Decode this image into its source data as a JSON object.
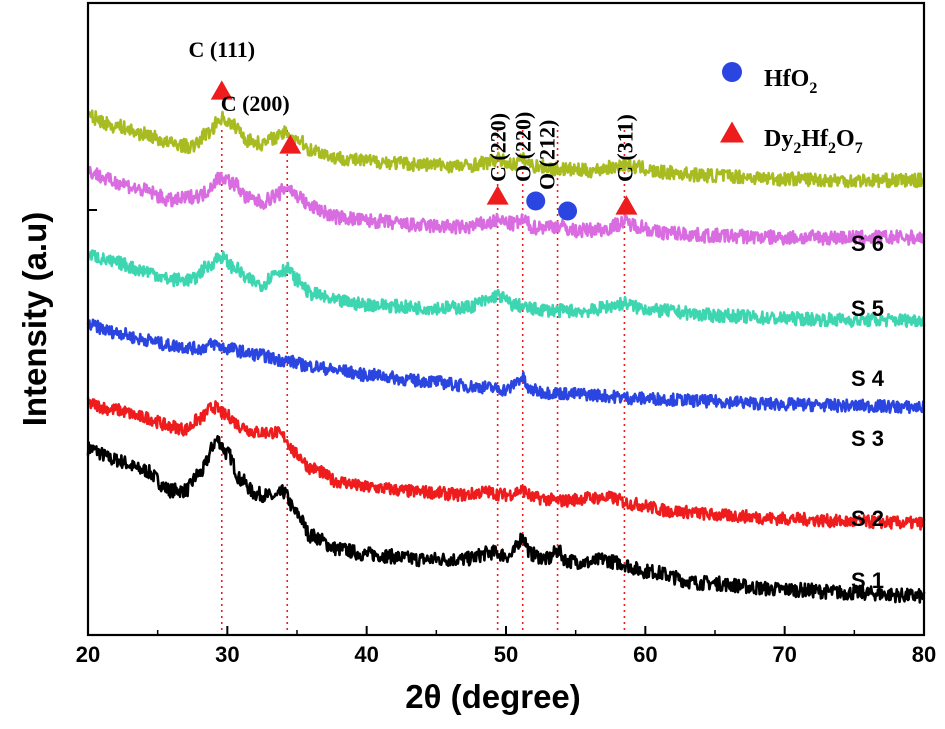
{
  "chart_data": {
    "type": "line",
    "xlabel": "2θ (degree)",
    "ylabel": "Intensity (a.u)",
    "xlim": [
      20,
      80
    ],
    "xticks": [
      20,
      30,
      40,
      50,
      60,
      70,
      80
    ],
    "grid": false,
    "legend_position": "top-right",
    "legend": [
      {
        "marker": "circle",
        "color": "#2b45e0",
        "label": "HfO",
        "sub": "2",
        "label2": "",
        "sub2": "",
        "label3": ""
      },
      {
        "marker": "triangle",
        "color": "#ee1c1c",
        "label": "Dy",
        "sub": "2",
        "label2": "Hf",
        "sub2": "2",
        "label3": "O",
        "sub3": "7"
      }
    ],
    "reference_lines": [
      29.6,
      34.3,
      49.4,
      51.2,
      53.7,
      58.5
    ],
    "peak_annotations": [
      {
        "label": "C  (111)",
        "x": 29.6,
        "marker": "triangle",
        "orientation": "horizontal"
      },
      {
        "label": "C  (200)",
        "x": 34.3,
        "marker": "triangle",
        "orientation": "horizontal"
      },
      {
        "label": "C  (220)",
        "x": 49.4,
        "marker": "triangle",
        "orientation": "vertical"
      },
      {
        "label": "O  (220)",
        "x": 51.2,
        "marker": "circle",
        "orientation": "vertical"
      },
      {
        "label": "O  (212)",
        "x": 53.7,
        "marker": "circle",
        "orientation": "vertical"
      },
      {
        "label": "C (311)",
        "x": 58.5,
        "marker": "triangle",
        "orientation": "vertical"
      }
    ],
    "series": [
      {
        "name": "S 1",
        "color": "#000000",
        "points": [
          [
            20,
            0.95
          ],
          [
            22,
            0.88
          ],
          [
            24,
            0.82
          ],
          [
            26,
            0.7
          ],
          [
            27,
            0.7
          ],
          [
            28,
            0.8
          ],
          [
            29.3,
            1.0
          ],
          [
            30,
            0.92
          ],
          [
            31,
            0.76
          ],
          [
            32,
            0.68
          ],
          [
            33.5,
            0.66
          ],
          [
            34,
            0.69
          ],
          [
            35,
            0.56
          ],
          [
            36,
            0.43
          ],
          [
            38,
            0.35
          ],
          [
            40,
            0.32
          ],
          [
            44,
            0.29
          ],
          [
            47,
            0.29
          ],
          [
            49,
            0.33
          ],
          [
            50.3,
            0.31
          ],
          [
            51.2,
            0.42
          ],
          [
            51.8,
            0.32
          ],
          [
            53,
            0.29
          ],
          [
            53.7,
            0.34
          ],
          [
            54.4,
            0.28
          ],
          [
            56,
            0.27
          ],
          [
            57,
            0.29
          ],
          [
            58,
            0.27
          ],
          [
            60,
            0.22
          ],
          [
            64,
            0.15
          ],
          [
            70,
            0.11
          ],
          [
            75,
            0.09
          ],
          [
            80,
            0.07
          ]
        ]
      },
      {
        "name": "S 2",
        "color": "#ee1c1c",
        "points": [
          [
            20,
            1.0
          ],
          [
            22,
            0.96
          ],
          [
            24,
            0.91
          ],
          [
            26,
            0.85
          ],
          [
            27,
            0.83
          ],
          [
            28,
            0.9
          ],
          [
            29.0,
            0.98
          ],
          [
            30,
            0.92
          ],
          [
            31,
            0.85
          ],
          [
            32,
            0.81
          ],
          [
            33.5,
            0.81
          ],
          [
            34,
            0.78
          ],
          [
            35,
            0.66
          ],
          [
            36,
            0.57
          ],
          [
            38,
            0.48
          ],
          [
            40,
            0.44
          ],
          [
            44,
            0.41
          ],
          [
            47,
            0.39
          ],
          [
            48.5,
            0.41
          ],
          [
            50,
            0.39
          ],
          [
            51.2,
            0.42
          ],
          [
            52,
            0.37
          ],
          [
            54,
            0.35
          ],
          [
            56,
            0.37
          ],
          [
            57.5,
            0.37
          ],
          [
            59,
            0.33
          ],
          [
            62,
            0.28
          ],
          [
            66,
            0.25
          ],
          [
            70,
            0.23
          ],
          [
            75,
            0.21
          ],
          [
            80,
            0.2
          ]
        ]
      },
      {
        "name": "S 3",
        "color": "#2b45e0",
        "points": [
          [
            20,
            1.0
          ],
          [
            22,
            0.95
          ],
          [
            24,
            0.9
          ],
          [
            26,
            0.86
          ],
          [
            28,
            0.84
          ],
          [
            29,
            0.87
          ],
          [
            30,
            0.84
          ],
          [
            32,
            0.8
          ],
          [
            34,
            0.76
          ],
          [
            36,
            0.72
          ],
          [
            38,
            0.69
          ],
          [
            40,
            0.66
          ],
          [
            44,
            0.62
          ],
          [
            48,
            0.58
          ],
          [
            50,
            0.56
          ],
          [
            51.2,
            0.64
          ],
          [
            51.6,
            0.56
          ],
          [
            53,
            0.54
          ],
          [
            55,
            0.53
          ],
          [
            60,
            0.5
          ],
          [
            65,
            0.48
          ],
          [
            70,
            0.46
          ],
          [
            75,
            0.45
          ],
          [
            80,
            0.44
          ]
        ]
      },
      {
        "name": "S 4",
        "color": "#3dd6b0",
        "points": [
          [
            20,
            1.0
          ],
          [
            22,
            0.95
          ],
          [
            24,
            0.9
          ],
          [
            26,
            0.84
          ],
          [
            27.5,
            0.84
          ],
          [
            28.5,
            0.92
          ],
          [
            29.5,
            0.99
          ],
          [
            30.5,
            0.92
          ],
          [
            31.5,
            0.84
          ],
          [
            32.5,
            0.81
          ],
          [
            33.5,
            0.89
          ],
          [
            34.3,
            0.91
          ],
          [
            35,
            0.84
          ],
          [
            36,
            0.75
          ],
          [
            38,
            0.7
          ],
          [
            40,
            0.68
          ],
          [
            44,
            0.66
          ],
          [
            47,
            0.66
          ],
          [
            48.5,
            0.7
          ],
          [
            49.4,
            0.74
          ],
          [
            50.5,
            0.68
          ],
          [
            52,
            0.65
          ],
          [
            54,
            0.64
          ],
          [
            56,
            0.64
          ],
          [
            57.5,
            0.67
          ],
          [
            58.5,
            0.69
          ],
          [
            59.5,
            0.66
          ],
          [
            61,
            0.64
          ],
          [
            65,
            0.61
          ],
          [
            70,
            0.59
          ],
          [
            75,
            0.58
          ],
          [
            80,
            0.58
          ]
        ]
      },
      {
        "name": "S 5",
        "color": "#d86ce0",
        "points": [
          [
            20,
            1.0
          ],
          [
            22,
            0.94
          ],
          [
            24,
            0.89
          ],
          [
            26,
            0.83
          ],
          [
            28,
            0.86
          ],
          [
            29.6,
            0.97
          ],
          [
            30.5,
            0.93
          ],
          [
            31.5,
            0.84
          ],
          [
            32.5,
            0.82
          ],
          [
            33.5,
            0.86
          ],
          [
            34.3,
            0.91
          ],
          [
            35,
            0.86
          ],
          [
            36,
            0.79
          ],
          [
            38,
            0.73
          ],
          [
            40,
            0.71
          ],
          [
            44,
            0.68
          ],
          [
            47,
            0.67
          ],
          [
            48.5,
            0.69
          ],
          [
            49.4,
            0.71
          ],
          [
            50.5,
            0.69
          ],
          [
            51.2,
            0.71
          ],
          [
            52,
            0.67
          ],
          [
            53.7,
            0.68
          ],
          [
            55,
            0.65
          ],
          [
            57,
            0.66
          ],
          [
            58.5,
            0.7
          ],
          [
            59.5,
            0.68
          ],
          [
            61,
            0.64
          ],
          [
            65,
            0.62
          ],
          [
            70,
            0.61
          ],
          [
            75,
            0.61
          ],
          [
            80,
            0.61
          ]
        ]
      },
      {
        "name": "S 6",
        "color": "#a8bc22",
        "points": [
          [
            20,
            0.96
          ],
          [
            22,
            0.9
          ],
          [
            24,
            0.85
          ],
          [
            26,
            0.79
          ],
          [
            27.5,
            0.77
          ],
          [
            28.5,
            0.85
          ],
          [
            29.6,
            0.95
          ],
          [
            30.5,
            0.9
          ],
          [
            31.5,
            0.81
          ],
          [
            32.5,
            0.79
          ],
          [
            33.5,
            0.83
          ],
          [
            34.3,
            0.86
          ],
          [
            35,
            0.82
          ],
          [
            36,
            0.75
          ],
          [
            38,
            0.7
          ],
          [
            40,
            0.68
          ],
          [
            44,
            0.66
          ],
          [
            47,
            0.65
          ],
          [
            48.5,
            0.67
          ],
          [
            49.4,
            0.69
          ],
          [
            50.5,
            0.66
          ],
          [
            51.2,
            0.69
          ],
          [
            52,
            0.65
          ],
          [
            54,
            0.63
          ],
          [
            56,
            0.62
          ],
          [
            57.5,
            0.64
          ],
          [
            58.5,
            0.66
          ],
          [
            59.5,
            0.64
          ],
          [
            61,
            0.61
          ],
          [
            65,
            0.59
          ],
          [
            70,
            0.57
          ],
          [
            75,
            0.56
          ],
          [
            80,
            0.56
          ]
        ]
      }
    ]
  }
}
